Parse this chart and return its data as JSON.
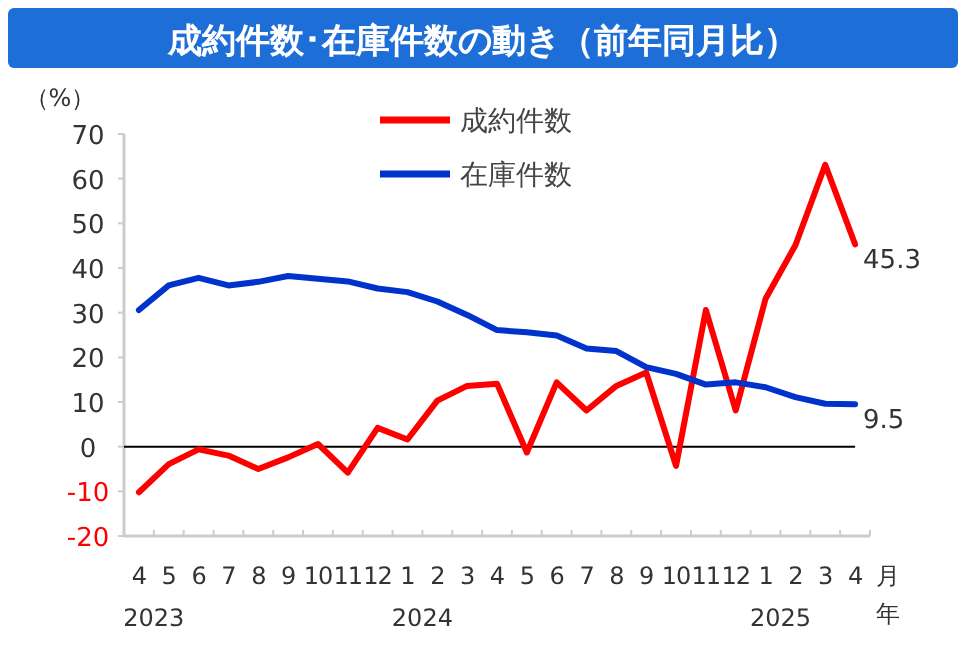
{
  "chart_data": {
    "type": "line",
    "title": "成約件数･在庫件数の動き（前年同月比）",
    "ylabel": "（%）",
    "xlabel": "月",
    "x": [
      "2023-04",
      "2023-05",
      "2023-06",
      "2023-07",
      "2023-08",
      "2023-09",
      "2023-10",
      "2023-11",
      "2023-12",
      "2024-01",
      "2024-02",
      "2024-03",
      "2024-04",
      "2024-05",
      "2024-06",
      "2024-07",
      "2024-08",
      "2024-09",
      "2024-10",
      "2024-11",
      "2024-12",
      "2025-01",
      "2025-02",
      "2025-03",
      "2025-04"
    ],
    "series": [
      {
        "name": "成約件数",
        "color": "#ff0000",
        "values": [
          -10.2,
          -3.9,
          -0.6,
          -2,
          -5,
          -2.4,
          0.6,
          -5.8,
          4.2,
          1.6,
          10.3,
          13.6,
          14.1,
          -1.3,
          14.4,
          8.1,
          13.6,
          16.6,
          -4.3,
          30.6,
          8.1,
          33.1,
          45.1,
          63.1,
          45.3
        ],
        "value_labels": [
          null,
          null,
          null,
          null,
          null,
          null,
          null,
          null,
          null,
          null,
          null,
          null,
          null,
          null,
          null,
          null,
          null,
          null,
          null,
          null,
          null,
          null,
          null,
          null,
          "45.3"
        ]
      },
      {
        "name": "在庫件数",
        "color": "#0033cc",
        "values": [
          30.6,
          36.1,
          37.8,
          36.1,
          36.9,
          38.2,
          37.6,
          37,
          35.4,
          34.6,
          32.5,
          29.5,
          26.1,
          25.6,
          24.9,
          22,
          21.4,
          17.8,
          16.3,
          13.9,
          14.4,
          13.3,
          11.1,
          9.6,
          9.5
        ],
        "value_labels": [
          null,
          null,
          null,
          null,
          null,
          null,
          null,
          null,
          null,
          null,
          null,
          null,
          null,
          null,
          null,
          null,
          null,
          null,
          null,
          null,
          null,
          null,
          null,
          null,
          "9.5"
        ]
      }
    ],
    "xlim": [
      "2023-03-16",
      "2025-04-16"
    ],
    "xticks": [
      {
        "value": "2023-04",
        "label": "4"
      },
      {
        "value": "2023-05",
        "label": "5"
      },
      {
        "value": "2023-06",
        "label": "6"
      },
      {
        "value": "2023-07",
        "label": "7"
      },
      {
        "value": "2023-08",
        "label": "8"
      },
      {
        "value": "2023-09",
        "label": "9"
      },
      {
        "value": "2023-10",
        "label": "10"
      },
      {
        "value": "2023-11",
        "label": "11"
      },
      {
        "value": "2023-12",
        "label": "12"
      },
      {
        "value": "2024-01",
        "label": "1"
      },
      {
        "value": "2024-02",
        "label": "2"
      },
      {
        "value": "2024-03",
        "label": "3"
      },
      {
        "value": "2024-04",
        "label": "4"
      },
      {
        "value": "2024-05",
        "label": "5"
      },
      {
        "value": "2024-06",
        "label": "6"
      },
      {
        "value": "2024-07",
        "label": "7"
      },
      {
        "value": "2024-08",
        "label": "8"
      },
      {
        "value": "2024-09",
        "label": "9"
      },
      {
        "value": "2024-10",
        "label": "10"
      },
      {
        "value": "2024-11",
        "label": "11"
      },
      {
        "value": "2024-12",
        "label": "12"
      },
      {
        "value": "2025-01",
        "label": "1"
      },
      {
        "value": "2025-02",
        "label": "2"
      },
      {
        "value": "2025-03",
        "label": "3"
      },
      {
        "value": "2025-04",
        "label": "4"
      }
    ],
    "ylim": [
      -20,
      70
    ],
    "yticks": [
      -20,
      -10,
      0,
      10,
      20,
      30,
      40,
      50,
      60,
      70
    ],
    "ref_lines": [
      {
        "axis": "y",
        "value": 0,
        "color": "#000000"
      }
    ],
    "annotations": [
      "2023",
      "2024",
      "2025",
      "年"
    ],
    "legend": "top",
    "grid": false,
    "marker": "none",
    "line_style": "solid"
  }
}
